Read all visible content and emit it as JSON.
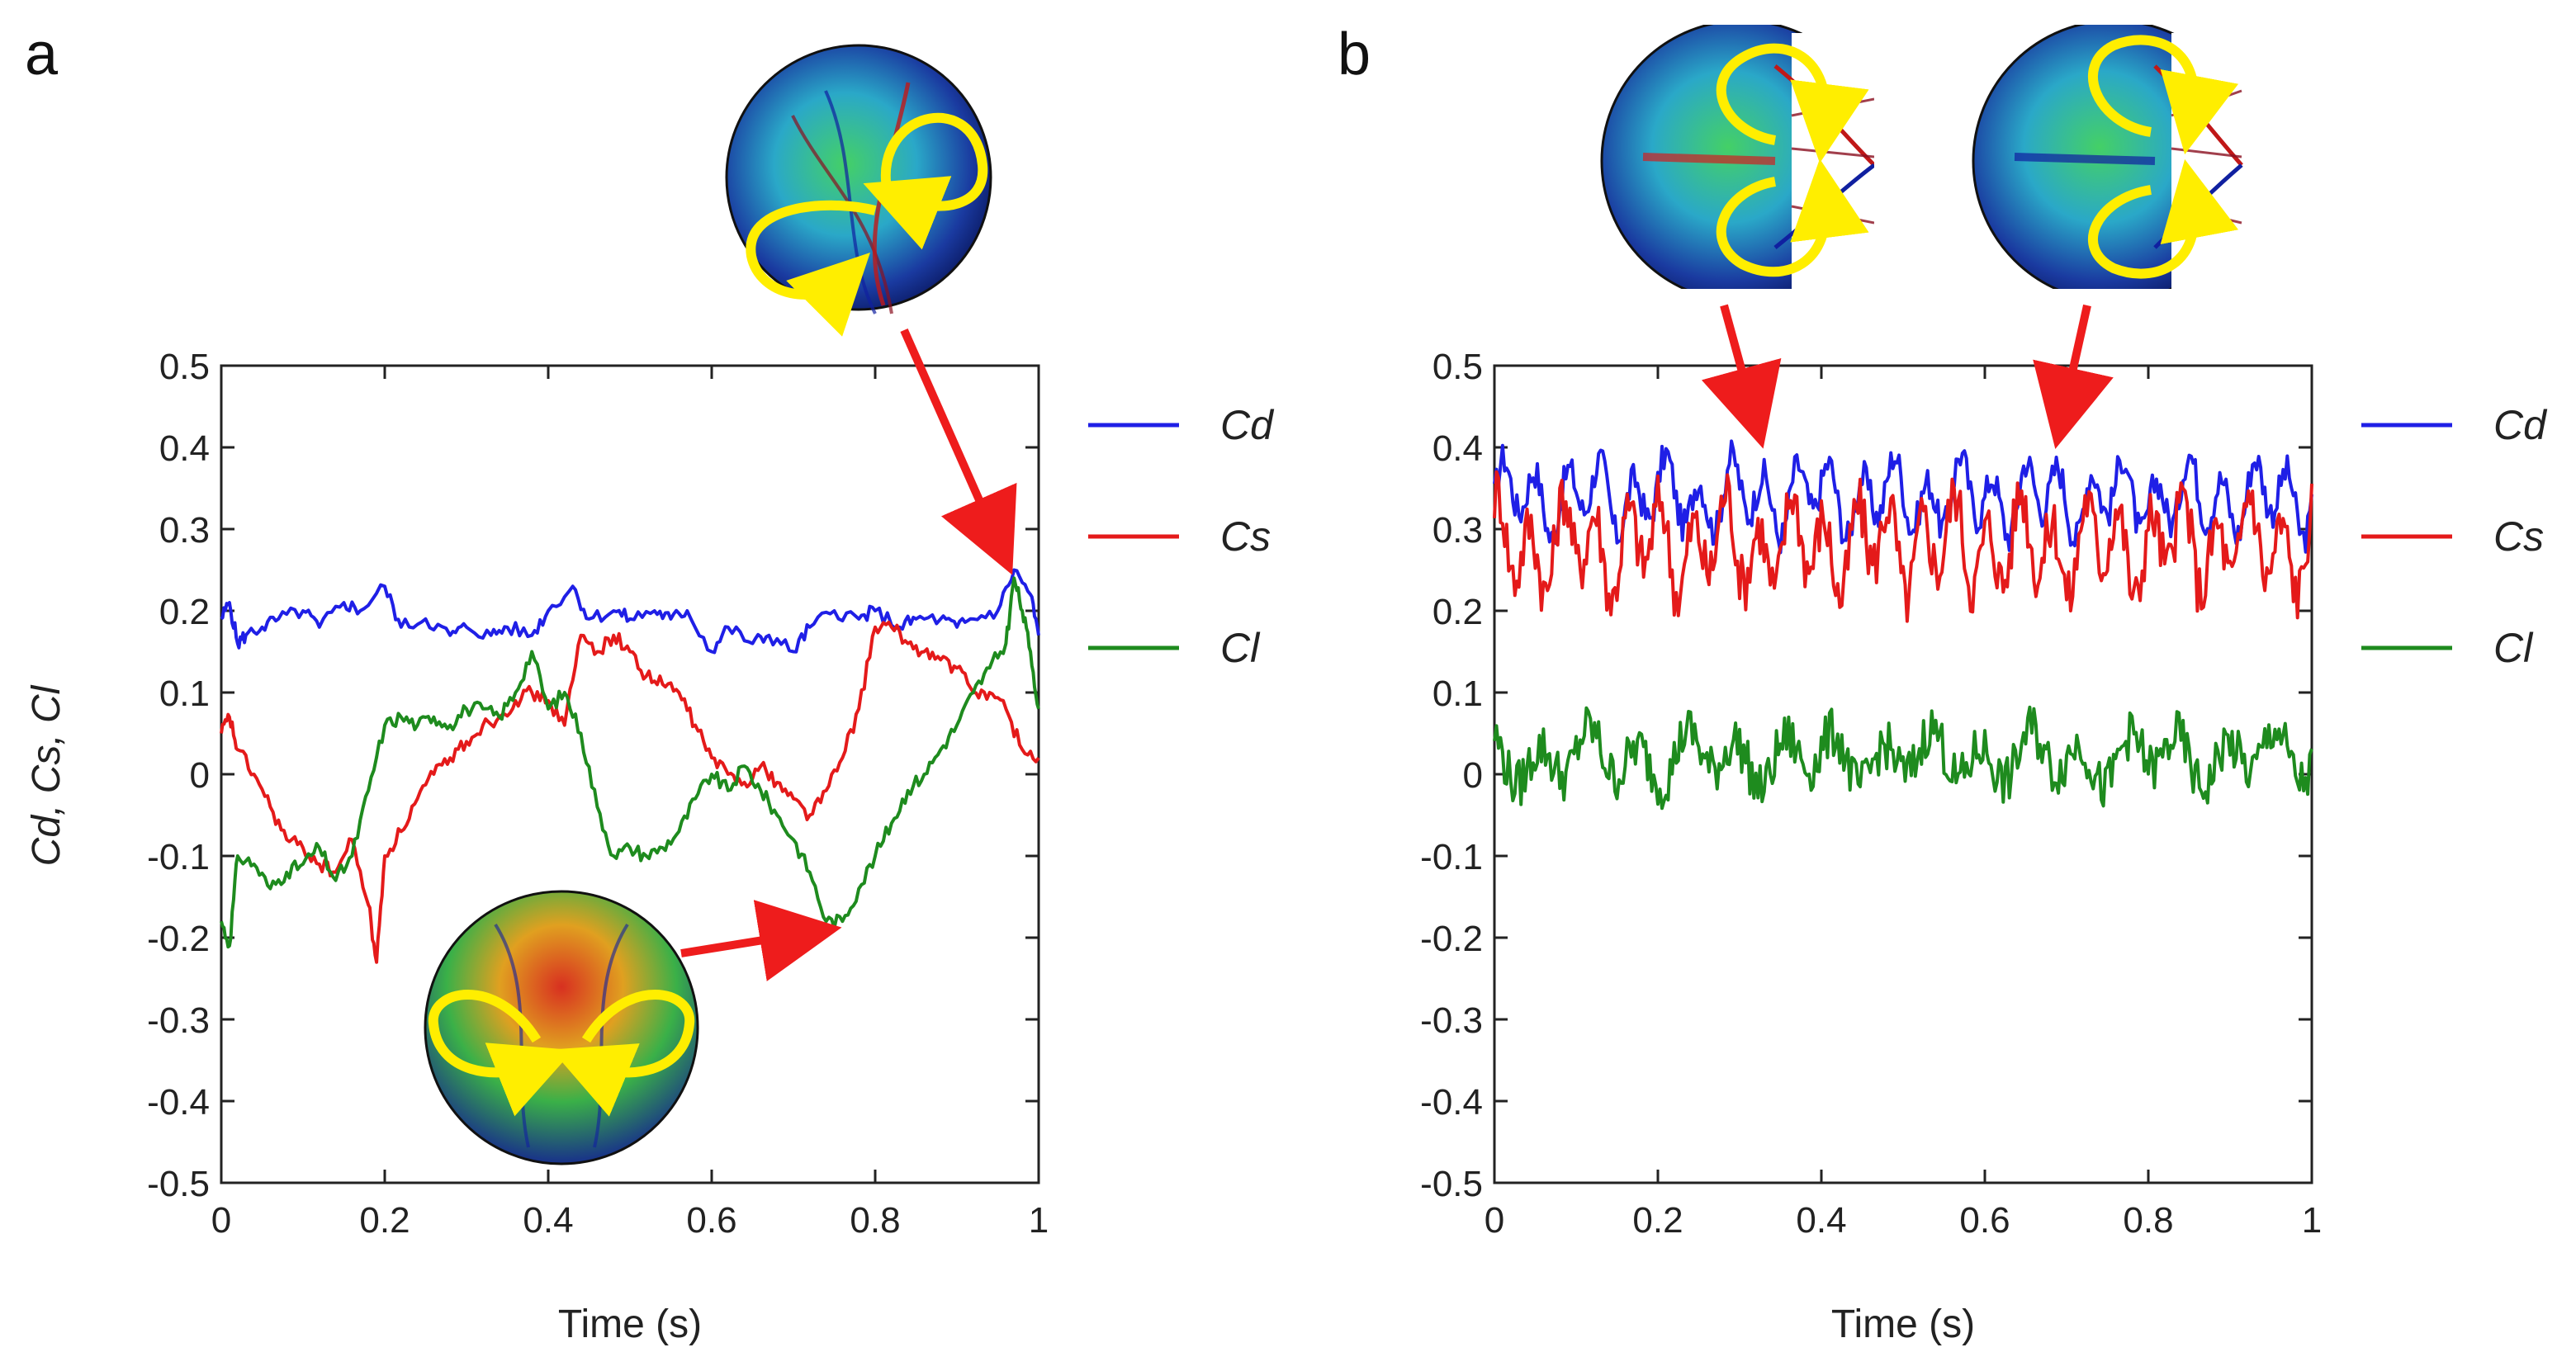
{
  "chart_data": [
    {
      "panel_label": "a",
      "type": "line",
      "title": "",
      "xlabel": "Time (s)",
      "ylabel": "Cd, Cs, Cl",
      "xlim": [
        0,
        1
      ],
      "ylim": [
        -0.5,
        0.5
      ],
      "xticks": [
        "0",
        "0.2",
        "0.4",
        "0.6",
        "0.8",
        "1"
      ],
      "yticks": [
        "0.5",
        "0.4",
        "0.3",
        "0.2",
        "0.1",
        "0",
        "-0.1",
        "-0.2",
        "-0.3",
        "-0.4",
        "-0.5"
      ],
      "legend_position": "right",
      "series": [
        {
          "name": "Cd",
          "color": "#1f1fe6",
          "x": [
            0,
            0.01,
            0.02,
            0.03,
            0.05,
            0.07,
            0.1,
            0.12,
            0.15,
            0.17,
            0.2,
            0.22,
            0.25,
            0.28,
            0.3,
            0.33,
            0.35,
            0.38,
            0.4,
            0.43,
            0.45,
            0.48,
            0.5,
            0.53,
            0.55,
            0.57,
            0.6,
            0.62,
            0.65,
            0.67,
            0.7,
            0.72,
            0.75,
            0.78,
            0.8,
            0.83,
            0.85,
            0.88,
            0.9,
            0.92,
            0.95,
            0.97,
            0.99,
            1.0
          ],
          "y": [
            0.19,
            0.21,
            0.16,
            0.17,
            0.18,
            0.19,
            0.2,
            0.18,
            0.21,
            0.2,
            0.23,
            0.18,
            0.19,
            0.17,
            0.18,
            0.17,
            0.18,
            0.17,
            0.2,
            0.23,
            0.19,
            0.2,
            0.19,
            0.2,
            0.19,
            0.2,
            0.15,
            0.18,
            0.16,
            0.17,
            0.15,
            0.18,
            0.2,
            0.19,
            0.2,
            0.18,
            0.19,
            0.19,
            0.18,
            0.19,
            0.2,
            0.25,
            0.22,
            0.17
          ]
        },
        {
          "name": "Cs",
          "color": "#e41a1a",
          "x": [
            0,
            0.01,
            0.02,
            0.04,
            0.06,
            0.08,
            0.1,
            0.12,
            0.14,
            0.16,
            0.18,
            0.19,
            0.2,
            0.22,
            0.24,
            0.26,
            0.28,
            0.3,
            0.32,
            0.34,
            0.36,
            0.38,
            0.4,
            0.42,
            0.44,
            0.46,
            0.48,
            0.5,
            0.52,
            0.54,
            0.56,
            0.58,
            0.6,
            0.62,
            0.64,
            0.66,
            0.68,
            0.7,
            0.72,
            0.74,
            0.76,
            0.78,
            0.8,
            0.82,
            0.84,
            0.86,
            0.88,
            0.9,
            0.92,
            0.94,
            0.96,
            0.98,
            1.0
          ],
          "y": [
            0.05,
            0.07,
            0.03,
            0.0,
            -0.04,
            -0.08,
            -0.09,
            -0.11,
            -0.12,
            -0.08,
            -0.16,
            -0.23,
            -0.1,
            -0.07,
            -0.03,
            0.0,
            0.02,
            0.04,
            0.06,
            0.07,
            0.09,
            0.1,
            0.09,
            0.06,
            0.17,
            0.15,
            0.17,
            0.15,
            0.12,
            0.11,
            0.1,
            0.06,
            0.02,
            0.0,
            -0.01,
            0.01,
            -0.01,
            -0.03,
            -0.05,
            -0.02,
            0.02,
            0.08,
            0.18,
            0.18,
            0.16,
            0.15,
            0.14,
            0.13,
            0.1,
            0.1,
            0.08,
            0.03,
            0.02
          ]
        },
        {
          "name": "Cl",
          "color": "#1e8b1e",
          "x": [
            0,
            0.01,
            0.02,
            0.04,
            0.06,
            0.08,
            0.1,
            0.12,
            0.14,
            0.16,
            0.18,
            0.2,
            0.22,
            0.24,
            0.26,
            0.28,
            0.3,
            0.32,
            0.34,
            0.36,
            0.38,
            0.4,
            0.42,
            0.44,
            0.46,
            0.48,
            0.5,
            0.52,
            0.54,
            0.56,
            0.58,
            0.6,
            0.62,
            0.64,
            0.66,
            0.68,
            0.7,
            0.72,
            0.74,
            0.76,
            0.78,
            0.8,
            0.82,
            0.84,
            0.86,
            0.88,
            0.9,
            0.92,
            0.94,
            0.96,
            0.97,
            0.98,
            0.99,
            1.0
          ],
          "y": [
            -0.18,
            -0.21,
            -0.1,
            -0.11,
            -0.14,
            -0.12,
            -0.11,
            -0.09,
            -0.13,
            -0.1,
            -0.02,
            0.06,
            0.07,
            0.06,
            0.07,
            0.06,
            0.08,
            0.08,
            0.07,
            0.1,
            0.15,
            0.08,
            0.1,
            0.05,
            -0.04,
            -0.1,
            -0.09,
            -0.1,
            -0.09,
            -0.07,
            -0.03,
            0.0,
            -0.02,
            0.01,
            -0.02,
            -0.05,
            -0.08,
            -0.12,
            -0.18,
            -0.18,
            -0.14,
            -0.1,
            -0.06,
            -0.02,
            0.0,
            0.03,
            0.06,
            0.1,
            0.13,
            0.16,
            0.24,
            0.2,
            0.15,
            0.08
          ]
        }
      ],
      "insets": [
        {
          "name": "sphere-wake-top-view",
          "points_to": {
            "x": 0.97,
            "y": 0.26
          }
        },
        {
          "name": "sphere-wake-bottom-view",
          "points_to": {
            "x": 0.74,
            "y": -0.19
          }
        }
      ]
    },
    {
      "panel_label": "b",
      "type": "line",
      "title": "",
      "xlabel": "Time (s)",
      "ylabel": "",
      "xlim": [
        0,
        1
      ],
      "ylim": [
        -0.5,
        0.5
      ],
      "xticks": [
        "0",
        "0.2",
        "0.4",
        "0.6",
        "0.8",
        "1"
      ],
      "yticks": [
        "0.5",
        "0.4",
        "0.3",
        "0.2",
        "0.1",
        "0",
        "-0.1",
        "-0.2",
        "-0.3",
        "-0.4",
        "-0.5"
      ],
      "legend_position": "right",
      "series": [
        {
          "name": "Cd",
          "color": "#1f1fe6",
          "mean": 0.34,
          "amplitude": 0.035,
          "noise": 0.02,
          "period": 0.04
        },
        {
          "name": "Cs",
          "color": "#e41a1a",
          "mean": 0.28,
          "amplitude": 0.045,
          "noise": 0.035,
          "period": 0.04
        },
        {
          "name": "Cl",
          "color": "#1e8b1e",
          "mean": 0.02,
          "amplitude": 0.025,
          "noise": 0.03,
          "period": 0.06
        }
      ],
      "insets": [
        {
          "name": "sphere-wake-side-view-1",
          "points_to": {
            "x": 0.32,
            "y": 0.42
          }
        },
        {
          "name": "sphere-wake-side-view-2",
          "points_to": {
            "x": 0.69,
            "y": 0.42
          }
        }
      ]
    }
  ]
}
